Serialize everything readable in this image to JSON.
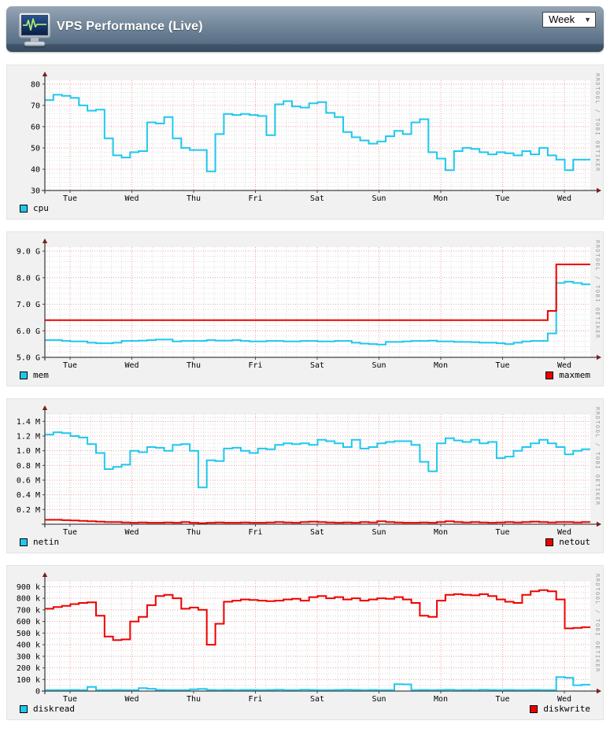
{
  "header": {
    "title": "VPS Performance (Live)",
    "period_value": "Week",
    "dropdown_arrow": "▼",
    "icon": "monitor-pulse-icon"
  },
  "watermark": "RRDTOOL / TOBI OETIKER",
  "colors": {
    "cyan": "#1ec8ee",
    "red": "#ee0000",
    "grid_major": "#f0a3a3",
    "grid_minor": "#dcdcdc",
    "axis": "#444444",
    "arrow": "#7a1f1f",
    "plot_bg": "#ffffff",
    "panel_bg": "#f1f1f1"
  },
  "x_labels": [
    "Tue",
    "Wed",
    "Thu",
    "Fri",
    "Sat",
    "Sun",
    "Mon",
    "Tue",
    "Wed"
  ],
  "chart_data": [
    {
      "id": "cpu",
      "type": "line",
      "ylabel_unit": "",
      "ylim": [
        30,
        81.8
      ],
      "y_minor_step": 2,
      "yticks": [
        {
          "v": 30,
          "label": "30"
        },
        {
          "v": 40,
          "label": "40"
        },
        {
          "v": 50,
          "label": "50"
        },
        {
          "v": 60,
          "label": "60"
        },
        {
          "v": 70,
          "label": "70"
        },
        {
          "v": 80,
          "label": "80"
        }
      ],
      "x_labels": [
        "Tue",
        "Wed",
        "Thu",
        "Fri",
        "Sat",
        "Sun",
        "Mon",
        "Tue",
        "Wed"
      ],
      "series": [
        {
          "name": "cpu",
          "color": "#1ec8ee",
          "legend_position": "left",
          "values": [
            72.5,
            75,
            74.5,
            73.5,
            70,
            67.5,
            68,
            54.5,
            46.5,
            45.5,
            48,
            48.5,
            62,
            61.5,
            64.5,
            54.5,
            50,
            49,
            49,
            39,
            56.5,
            66,
            65.5,
            66,
            65.5,
            65,
            56,
            70.5,
            72,
            69.5,
            69,
            71,
            71.5,
            66.5,
            64.5,
            57.5,
            55,
            53.5,
            52,
            53,
            55.5,
            58,
            56.5,
            62,
            63.5,
            48,
            45,
            39.5,
            48.5,
            50,
            49.5,
            48,
            47,
            48,
            47.5,
            46.5,
            48.5,
            47,
            50,
            46.5,
            44.5,
            39.5,
            44.5,
            44.5
          ]
        }
      ]
    },
    {
      "id": "memory",
      "type": "line",
      "ylabel_unit": "G",
      "ylim": [
        5.0,
        9.15
      ],
      "y_minor_step": 0.2,
      "yticks": [
        {
          "v": 5.0,
          "label": "5.0 G"
        },
        {
          "v": 6.0,
          "label": "6.0 G"
        },
        {
          "v": 7.0,
          "label": "7.0 G"
        },
        {
          "v": 8.0,
          "label": "8.0 G"
        },
        {
          "v": 9.0,
          "label": "9.0 G"
        }
      ],
      "x_labels": [
        "Tue",
        "Wed",
        "Thu",
        "Fri",
        "Sat",
        "Sun",
        "Mon",
        "Tue",
        "Wed"
      ],
      "series": [
        {
          "name": "mem",
          "color": "#1ec8ee",
          "legend_position": "left",
          "values": [
            5.65,
            5.65,
            5.62,
            5.6,
            5.6,
            5.55,
            5.53,
            5.53,
            5.55,
            5.62,
            5.62,
            5.63,
            5.65,
            5.67,
            5.67,
            5.6,
            5.62,
            5.62,
            5.62,
            5.65,
            5.63,
            5.63,
            5.65,
            5.62,
            5.6,
            5.6,
            5.62,
            5.62,
            5.6,
            5.6,
            5.62,
            5.62,
            5.6,
            5.6,
            5.62,
            5.62,
            5.55,
            5.52,
            5.5,
            5.48,
            5.58,
            5.58,
            5.6,
            5.62,
            5.62,
            5.63,
            5.6,
            5.6,
            5.58,
            5.58,
            5.57,
            5.55,
            5.55,
            5.53,
            5.5,
            5.55,
            5.6,
            5.62,
            5.62,
            5.9,
            7.8,
            7.85,
            7.8,
            7.75
          ]
        },
        {
          "name": "maxmem",
          "color": "#ee0000",
          "legend_position": "right",
          "values": [
            6.4,
            6.4,
            6.4,
            6.4,
            6.4,
            6.4,
            6.4,
            6.4,
            6.4,
            6.4,
            6.4,
            6.4,
            6.4,
            6.4,
            6.4,
            6.4,
            6.4,
            6.4,
            6.4,
            6.4,
            6.4,
            6.4,
            6.4,
            6.4,
            6.4,
            6.4,
            6.4,
            6.4,
            6.4,
            6.4,
            6.4,
            6.4,
            6.4,
            6.4,
            6.4,
            6.4,
            6.4,
            6.4,
            6.4,
            6.4,
            6.4,
            6.4,
            6.4,
            6.4,
            6.4,
            6.4,
            6.4,
            6.4,
            6.4,
            6.4,
            6.4,
            6.4,
            6.4,
            6.4,
            6.4,
            6.4,
            6.4,
            6.4,
            6.4,
            6.75,
            8.5,
            8.5,
            8.5,
            8.5
          ]
        }
      ]
    },
    {
      "id": "network",
      "type": "line",
      "ylabel_unit": "M",
      "ylim": [
        0,
        1.5
      ],
      "y_minor_step": 0.05,
      "yticks": [
        {
          "v": 0.2,
          "label": "0.2 M"
        },
        {
          "v": 0.4,
          "label": "0.4 M"
        },
        {
          "v": 0.6,
          "label": "0.6 M"
        },
        {
          "v": 0.8,
          "label": "0.8 M"
        },
        {
          "v": 1.0,
          "label": "1.0 M"
        },
        {
          "v": 1.2,
          "label": "1.2 M"
        },
        {
          "v": 1.4,
          "label": "1.4 M"
        }
      ],
      "x_labels": [
        "Tue",
        "Wed",
        "Thu",
        "Fri",
        "Sat",
        "Sun",
        "Mon",
        "Tue",
        "Wed"
      ],
      "series": [
        {
          "name": "netin",
          "color": "#1ec8ee",
          "legend_position": "left",
          "values": [
            1.22,
            1.25,
            1.24,
            1.2,
            1.18,
            1.09,
            0.97,
            0.75,
            0.78,
            0.81,
            1.0,
            0.98,
            1.05,
            1.04,
            1.0,
            1.08,
            1.09,
            1.0,
            0.5,
            0.87,
            0.86,
            1.03,
            1.04,
            1.0,
            0.97,
            1.03,
            1.02,
            1.08,
            1.1,
            1.09,
            1.1,
            1.08,
            1.15,
            1.13,
            1.1,
            1.05,
            1.15,
            1.03,
            1.05,
            1.1,
            1.12,
            1.13,
            1.13,
            1.08,
            0.85,
            0.72,
            1.1,
            1.17,
            1.14,
            1.12,
            1.15,
            1.1,
            1.12,
            0.9,
            0.92,
            1.0,
            1.05,
            1.1,
            1.15,
            1.1,
            1.05,
            0.95,
            1.0,
            1.02
          ]
        },
        {
          "name": "netout",
          "color": "#ee0000",
          "legend_position": "right",
          "values": [
            0.06,
            0.06,
            0.055,
            0.05,
            0.045,
            0.04,
            0.035,
            0.03,
            0.03,
            0.025,
            0.02,
            0.025,
            0.02,
            0.02,
            0.025,
            0.02,
            0.03,
            0.02,
            0.015,
            0.02,
            0.025,
            0.02,
            0.02,
            0.025,
            0.02,
            0.02,
            0.025,
            0.03,
            0.025,
            0.02,
            0.03,
            0.035,
            0.03,
            0.025,
            0.02,
            0.025,
            0.02,
            0.03,
            0.025,
            0.04,
            0.03,
            0.025,
            0.02,
            0.02,
            0.025,
            0.02,
            0.03,
            0.04,
            0.03,
            0.025,
            0.03,
            0.025,
            0.02,
            0.025,
            0.03,
            0.025,
            0.03,
            0.035,
            0.03,
            0.025,
            0.03,
            0.03,
            0.025,
            0.03
          ]
        }
      ]
    },
    {
      "id": "disk",
      "type": "line",
      "ylabel_unit": "k",
      "ylim": [
        0,
        950
      ],
      "y_minor_step": 50,
      "yticks": [
        {
          "v": 0,
          "label": "0"
        },
        {
          "v": 100,
          "label": "100 k"
        },
        {
          "v": 200,
          "label": "200 k"
        },
        {
          "v": 300,
          "label": "300 k"
        },
        {
          "v": 400,
          "label": "400 k"
        },
        {
          "v": 500,
          "label": "500 k"
        },
        {
          "v": 600,
          "label": "600 k"
        },
        {
          "v": 700,
          "label": "700 k"
        },
        {
          "v": 800,
          "label": "800 k"
        },
        {
          "v": 900,
          "label": "900 k"
        }
      ],
      "x_labels": [
        "Tue",
        "Wed",
        "Thu",
        "Fri",
        "Sat",
        "Sun",
        "Mon",
        "Tue",
        "Wed"
      ],
      "series": [
        {
          "name": "diskread",
          "color": "#1ec8ee",
          "legend_position": "left",
          "values": [
            8,
            8,
            8,
            10,
            8,
            35,
            8,
            8,
            10,
            8,
            8,
            25,
            20,
            10,
            8,
            8,
            8,
            15,
            18,
            10,
            8,
            10,
            8,
            10,
            10,
            8,
            10,
            12,
            8,
            8,
            12,
            10,
            8,
            8,
            10,
            12,
            10,
            8,
            10,
            8,
            8,
            60,
            58,
            8,
            10,
            8,
            10,
            12,
            8,
            10,
            8,
            12,
            10,
            8,
            10,
            8,
            8,
            10,
            8,
            8,
            120,
            115,
            50,
            55
          ]
        },
        {
          "name": "diskwrite",
          "color": "#ee0000",
          "legend_position": "right",
          "values": [
            710,
            725,
            735,
            750,
            760,
            765,
            650,
            470,
            440,
            445,
            600,
            640,
            740,
            820,
            830,
            800,
            710,
            720,
            700,
            400,
            580,
            770,
            780,
            790,
            785,
            780,
            775,
            780,
            790,
            795,
            780,
            810,
            820,
            800,
            810,
            790,
            800,
            780,
            790,
            800,
            795,
            810,
            790,
            760,
            650,
            640,
            780,
            830,
            835,
            830,
            825,
            835,
            820,
            790,
            770,
            760,
            830,
            860,
            870,
            860,
            790,
            540,
            545,
            550
          ]
        }
      ]
    }
  ]
}
